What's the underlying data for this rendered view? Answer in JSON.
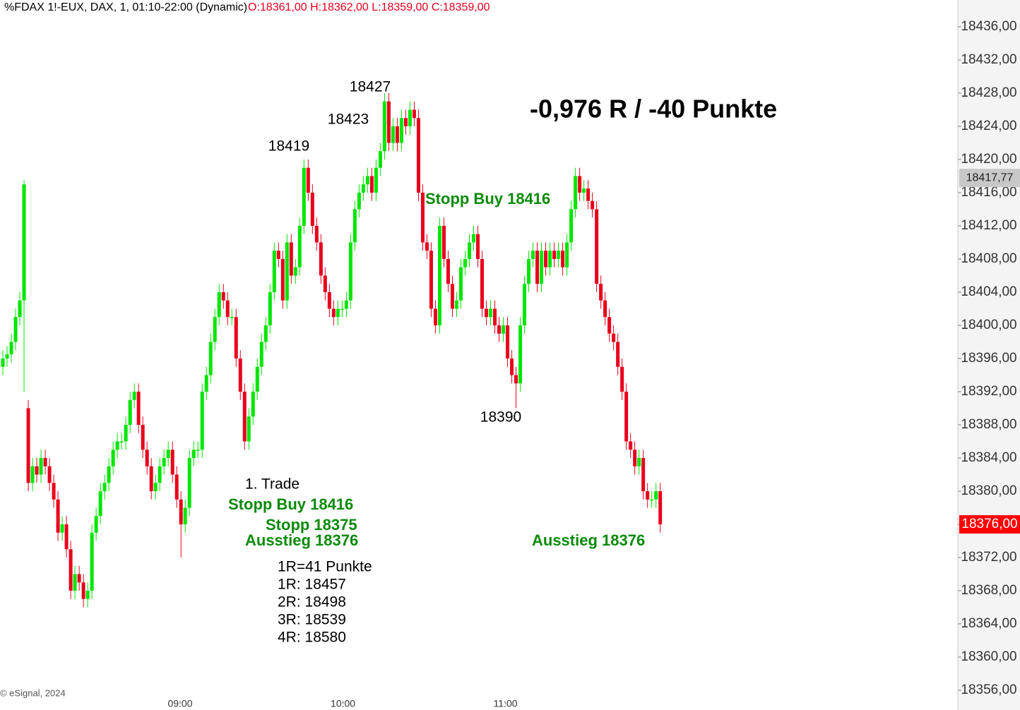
{
  "chart_data": {
    "type": "candlestick",
    "title": "%FDAX 1!-EUX, DAX, 1, 01:10-22:00 (Dynamic)",
    "ohlc_summary": "O:18361,00 H:18362,00 L:18359,00 C:18359,00",
    "copyright": "© eSignal, 2024",
    "up_color": "#00e600",
    "down_color": "#e8001c",
    "open": [
      18395,
      18396,
      18396.5,
      18398,
      18401,
      18403,
      18390,
      18381,
      18383,
      18382,
      18384,
      18383,
      18381,
      18379,
      18375,
      18376,
      18373,
      18368,
      18370,
      18369,
      18367,
      18368,
      18375,
      18377,
      18380,
      18381,
      18383,
      18385,
      18386,
      18386,
      18388,
      18391,
      18392,
      18388,
      18385,
      18383,
      18380,
      18381,
      18383,
      18384,
      18385,
      18382,
      18379,
      18376,
      18378,
      18384,
      18385,
      18385,
      18392,
      18394,
      18398,
      18401,
      18404,
      18403,
      18401,
      18401,
      18396,
      18392,
      18386,
      18389,
      18392,
      18395,
      18398,
      18400,
      18404,
      18409,
      18408,
      18403,
      18410,
      18406,
      18407,
      18412,
      18419,
      18416,
      18412,
      18410,
      18406,
      18404,
      18402,
      18401,
      18402,
      18402,
      18403,
      18410,
      18414,
      18416,
      18417,
      18418,
      18416,
      18419,
      18421,
      18427,
      18422,
      18424,
      18422,
      18425,
      18424,
      18426,
      18425,
      18416,
      18410,
      18409,
      18402,
      18400,
      18412,
      18408,
      18405,
      18402,
      18403,
      18407,
      18408,
      18410,
      18411,
      18408,
      18402,
      18401,
      18402,
      18400,
      18399,
      18400,
      18396,
      18394,
      18393,
      18400,
      18405,
      18408,
      18409,
      18405,
      18409,
      18407,
      18409,
      18408,
      18409,
      18407,
      18410,
      18414,
      18418,
      18416,
      18416.5,
      18415,
      18414,
      18405,
      18403,
      18401,
      18399,
      18398,
      18395,
      18392,
      18386,
      18385,
      18383,
      18384,
      18380,
      18379,
      18379,
      18380
    ],
    "high": [
      18397,
      18397.5,
      18399,
      18402,
      18404,
      18417.5,
      18391,
      18384,
      18384,
      18385,
      18385,
      18384,
      18382,
      18380,
      18377,
      18377,
      18374,
      18371,
      18371,
      18370,
      18369,
      18376,
      18378,
      18381,
      18382,
      18384,
      18386,
      18387,
      18387,
      18389,
      18392,
      18393,
      18393,
      18389,
      18386,
      18384,
      18382,
      18384,
      18385,
      18386,
      18386,
      18383,
      18380,
      18379,
      18385,
      18386,
      18386,
      18393,
      18395,
      18399,
      18402,
      18405,
      18405,
      18404,
      18402,
      18402,
      18397,
      18393,
      18390,
      18393,
      18396,
      18399,
      18401,
      18405,
      18410,
      18410,
      18409,
      18411,
      18411,
      18408,
      18413,
      18420,
      18420,
      18417,
      18413,
      18411,
      18407,
      18405,
      18403,
      18403,
      18403,
      18404,
      18411,
      18415,
      18417,
      18418,
      18419,
      18419,
      18420,
      18422,
      18428,
      18428,
      18425,
      18425,
      18426,
      18426,
      18427,
      18427,
      18426,
      18417,
      18411,
      18410,
      18403,
      18413,
      18413,
      18409,
      18406,
      18404,
      18408,
      18409,
      18411,
      18412,
      18412,
      18409,
      18403,
      18403,
      18403,
      18401,
      18401,
      18401,
      18397,
      18395,
      18401,
      18406,
      18409,
      18410,
      18410,
      18410,
      18410,
      18410,
      18410,
      18410,
      18410,
      18411,
      18415,
      18419,
      18419,
      18417.5,
      18417.5,
      18416,
      18415,
      18406,
      18404,
      18402,
      18400,
      18399,
      18396,
      18393,
      18387,
      18386,
      18385,
      18385,
      18381,
      18380,
      18381,
      18381
    ],
    "low": [
      18394,
      18395,
      18395.5,
      18397,
      18400,
      18392,
      18380,
      18380,
      18381,
      18381,
      18382,
      18380,
      18378,
      18374,
      18374,
      18372,
      18367,
      18367,
      18368,
      18366,
      18366,
      18367,
      18374,
      18376,
      18379,
      18380,
      18382,
      18384,
      18385,
      18385,
      18387,
      18390,
      18387,
      18384,
      18382,
      18379,
      18379,
      18380,
      18382,
      18383,
      18381,
      18378,
      18372,
      18375,
      18377,
      18383,
      18384,
      18384,
      18391,
      18393,
      18397,
      18400,
      18402,
      18400,
      18400,
      18395,
      18391,
      18385,
      18385,
      18388,
      18391,
      18394,
      18397,
      18399,
      18403,
      18407,
      18402,
      18402,
      18405,
      18405,
      18406,
      18411,
      18415,
      18411,
      18409,
      18405,
      18403,
      18401,
      18400,
      18400,
      18401,
      18401,
      18402,
      18409,
      18413,
      18415,
      18416,
      18415,
      18415,
      18418,
      18420,
      18421,
      18421,
      18421,
      18421,
      18423,
      18423,
      18424,
      18415,
      18409,
      18408,
      18401,
      18399,
      18399,
      18407,
      18404,
      18401,
      18401,
      18402,
      18406,
      18407,
      18409,
      18407,
      18401,
      18400,
      18400,
      18399,
      18398,
      18398,
      18395,
      18393,
      18390,
      18392,
      18399,
      18404,
      18407,
      18404,
      18404,
      18406,
      18406,
      18407,
      18407,
      18406,
      18406,
      18409,
      18413,
      18415,
      18415,
      18414,
      18413,
      18404,
      18402,
      18400,
      18398,
      18397,
      18394,
      18391,
      18385,
      18384,
      18382,
      18382,
      18379,
      18378,
      18378,
      18378,
      18375
    ],
    "close": [
      18396,
      18396.5,
      18398,
      18401,
      18403,
      18417,
      18381,
      18383,
      18382,
      18384,
      18383,
      18381,
      18379,
      18375,
      18376,
      18373,
      18368,
      18370,
      18369,
      18367,
      18368,
      18375,
      18377,
      18380,
      18381,
      18383,
      18385,
      18386,
      18386,
      18388,
      18391,
      18392,
      18388,
      18385,
      18383,
      18380,
      18381,
      18383,
      18384,
      18385,
      18382,
      18379,
      18376,
      18378,
      18384,
      18385,
      18385,
      18392,
      18394,
      18398,
      18401,
      18404,
      18403,
      18401,
      18401,
      18396,
      18392,
      18386,
      18389,
      18392,
      18395,
      18398,
      18400,
      18404,
      18409,
      18408,
      18403,
      18410,
      18406,
      18407,
      18412,
      18419,
      18416,
      18412,
      18410,
      18406,
      18404,
      18402,
      18401,
      18402,
      18402,
      18403,
      18410,
      18414,
      18416,
      18417,
      18418,
      18416,
      18419,
      18421,
      18427,
      18422,
      18424,
      18422,
      18425,
      18424,
      18426,
      18425,
      18416,
      18410,
      18409,
      18402,
      18400,
      18412,
      18408,
      18405,
      18402,
      18403,
      18407,
      18408,
      18410,
      18411,
      18408,
      18402,
      18401,
      18402,
      18400,
      18399,
      18400,
      18396,
      18394,
      18393,
      18400,
      18405,
      18408,
      18409,
      18405,
      18409,
      18407,
      18409,
      18408,
      18409,
      18407,
      18410,
      18414,
      18418,
      18416,
      18416.5,
      18415,
      18414,
      18405,
      18403,
      18401,
      18399,
      18398,
      18395,
      18392,
      18386,
      18385,
      18383,
      18384,
      18380,
      18379,
      18379,
      18380,
      18376
    ],
    "xlim": [
      -0.67,
      225.17
    ],
    "xticks": [
      {
        "value": 41.8,
        "label": "09:00"
      },
      {
        "value": 80.2,
        "label": "10:00"
      },
      {
        "value": 118.5,
        "label": "11:00"
      }
    ],
    "ylim": [
      18354.55,
      18439.23
    ],
    "yticks": [
      {
        "value": 18356,
        "label": "18356,00"
      },
      {
        "value": 18360,
        "label": "18360,00"
      },
      {
        "value": 18364,
        "label": "18364,00"
      },
      {
        "value": 18368,
        "label": "18368,00"
      },
      {
        "value": 18372,
        "label": "18372,00"
      },
      {
        "value": 18376,
        "label": "18376,00"
      },
      {
        "value": 18380,
        "label": "18380,00"
      },
      {
        "value": 18384,
        "label": "18384,00"
      },
      {
        "value": 18388,
        "label": "18388,00"
      },
      {
        "value": 18392,
        "label": "18392,00"
      },
      {
        "value": 18396,
        "label": "18396,00"
      },
      {
        "value": 18400,
        "label": "18400,00"
      },
      {
        "value": 18404,
        "label": "18404,00"
      },
      {
        "value": 18408,
        "label": "18408,00"
      },
      {
        "value": 18412,
        "label": "18412,00"
      },
      {
        "value": 18416,
        "label": "18416,00"
      },
      {
        "value": 18420,
        "label": "18420,00"
      },
      {
        "value": 18424,
        "label": "18424,00"
      },
      {
        "value": 18428,
        "label": "18428,00"
      },
      {
        "value": 18432,
        "label": "18432,00"
      },
      {
        "value": 18436,
        "label": "18436,00"
      }
    ],
    "price_labels": [
      {
        "value": 18417.77,
        "label": "18417,77",
        "color": "#c8c8c8"
      },
      {
        "value": 18376,
        "label": "18376,00",
        "color": "#ff0000"
      }
    ],
    "annotations": [
      "18427",
      "18423",
      "18419",
      "-0,976 R / -40 Punkte",
      "Stopp Buy 18416",
      "18390",
      "1. Trade",
      "Stopp Buy 18416",
      "Stopp 18375",
      "Ausstieg 18376",
      "Ausstieg 18376",
      "1R=41 Punkte",
      "1R: 18457",
      "2R: 18498",
      "3R: 18539",
      "4R: 18580"
    ]
  }
}
